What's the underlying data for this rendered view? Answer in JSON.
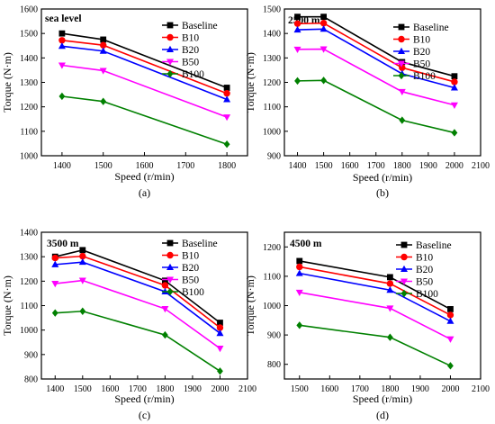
{
  "chart_data": [
    {
      "type": "line",
      "panel_label": "(a)",
      "inset_title": "sea level",
      "xlabel": "Speed (r/min)",
      "ylabel": "Torque (N·m)",
      "xlim": [
        1350,
        1850
      ],
      "ylim": [
        1000,
        1600
      ],
      "xticks": [
        1400,
        1500,
        1600,
        1700,
        1800
      ],
      "yticks": [
        1000,
        1100,
        1200,
        1300,
        1400,
        1500,
        1600
      ],
      "x": [
        1400,
        1500,
        1800
      ],
      "series": [
        {
          "name": "Baseline",
          "values": [
            1500,
            1475,
            1278
          ]
        },
        {
          "name": "B10",
          "values": [
            1472,
            1452,
            1255
          ]
        },
        {
          "name": "B20",
          "values": [
            1448,
            1428,
            1230
          ]
        },
        {
          "name": "B50",
          "values": [
            1370,
            1348,
            1158
          ]
        },
        {
          "name": "B100",
          "values": [
            1243,
            1222,
            1047
          ]
        }
      ],
      "legend": "top-right"
    },
    {
      "type": "line",
      "panel_label": "(b)",
      "inset_title": "2500 m",
      "xlabel": "Speed (r/min)",
      "ylabel": "Torque (N·m)",
      "xlim": [
        1350,
        2100
      ],
      "ylim": [
        900,
        1500
      ],
      "xticks": [
        1400,
        1500,
        1600,
        1700,
        1800,
        1900,
        2000,
        2100
      ],
      "yticks": [
        900,
        1000,
        1100,
        1200,
        1300,
        1400,
        1500
      ],
      "x": [
        1400,
        1500,
        1800,
        2000
      ],
      "series": [
        {
          "name": "Baseline",
          "values": [
            1468,
            1468,
            1283,
            1225
          ]
        },
        {
          "name": "B10",
          "values": [
            1440,
            1442,
            1260,
            1202
          ]
        },
        {
          "name": "B20",
          "values": [
            1415,
            1418,
            1235,
            1178
          ]
        },
        {
          "name": "B50",
          "values": [
            1335,
            1336,
            1162,
            1107
          ]
        },
        {
          "name": "B100",
          "values": [
            1206,
            1208,
            1045,
            994
          ]
        }
      ],
      "legend": "top-right"
    },
    {
      "type": "line",
      "panel_label": "(c)",
      "inset_title": "3500 m",
      "xlabel": "Speed (r/min)",
      "ylabel": "Torque (N·m)",
      "xlim": [
        1350,
        2100
      ],
      "ylim": [
        800,
        1400
      ],
      "xticks": [
        1400,
        1500,
        1600,
        1700,
        1800,
        1900,
        2000,
        2100
      ],
      "yticks": [
        800,
        900,
        1000,
        1100,
        1200,
        1300,
        1400
      ],
      "x": [
        1400,
        1500,
        1800,
        2000
      ],
      "series": [
        {
          "name": "Baseline",
          "values": [
            1300,
            1327,
            1202,
            1030
          ]
        },
        {
          "name": "B10",
          "values": [
            1295,
            1302,
            1183,
            1010
          ]
        },
        {
          "name": "B20",
          "values": [
            1268,
            1278,
            1157,
            987
          ]
        },
        {
          "name": "B50",
          "values": [
            1190,
            1203,
            1087,
            925
          ]
        },
        {
          "name": "B100",
          "values": [
            1070,
            1077,
            980,
            832
          ]
        }
      ],
      "legend": "top-right"
    },
    {
      "type": "line",
      "panel_label": "(d)",
      "inset_title": "4500 m",
      "xlabel": "Speed (r/min)",
      "ylabel": "Torque (N·m)",
      "xlim": [
        1450,
        2100
      ],
      "ylim": [
        750,
        1250
      ],
      "xticks": [
        1500,
        1600,
        1700,
        1800,
        1900,
        2000,
        2100
      ],
      "yticks": [
        800,
        900,
        1000,
        1100,
        1200
      ],
      "x": [
        1500,
        1800,
        2000
      ],
      "series": [
        {
          "name": "Baseline",
          "values": [
            1152,
            1097,
            988
          ]
        },
        {
          "name": "B10",
          "values": [
            1132,
            1075,
            968
          ]
        },
        {
          "name": "B20",
          "values": [
            1110,
            1053,
            947
          ]
        },
        {
          "name": "B50",
          "values": [
            1045,
            991,
            886
          ]
        },
        {
          "name": "B100",
          "values": [
            933,
            892,
            795
          ]
        }
      ],
      "legend": "top-right"
    }
  ],
  "series_styles": [
    {
      "color": "#000000",
      "marker": "square"
    },
    {
      "color": "#ff0000",
      "marker": "circle"
    },
    {
      "color": "#0000ff",
      "marker": "triangle-up"
    },
    {
      "color": "#ff00ff",
      "marker": "triangle-down"
    },
    {
      "color": "#008000",
      "marker": "diamond"
    }
  ]
}
